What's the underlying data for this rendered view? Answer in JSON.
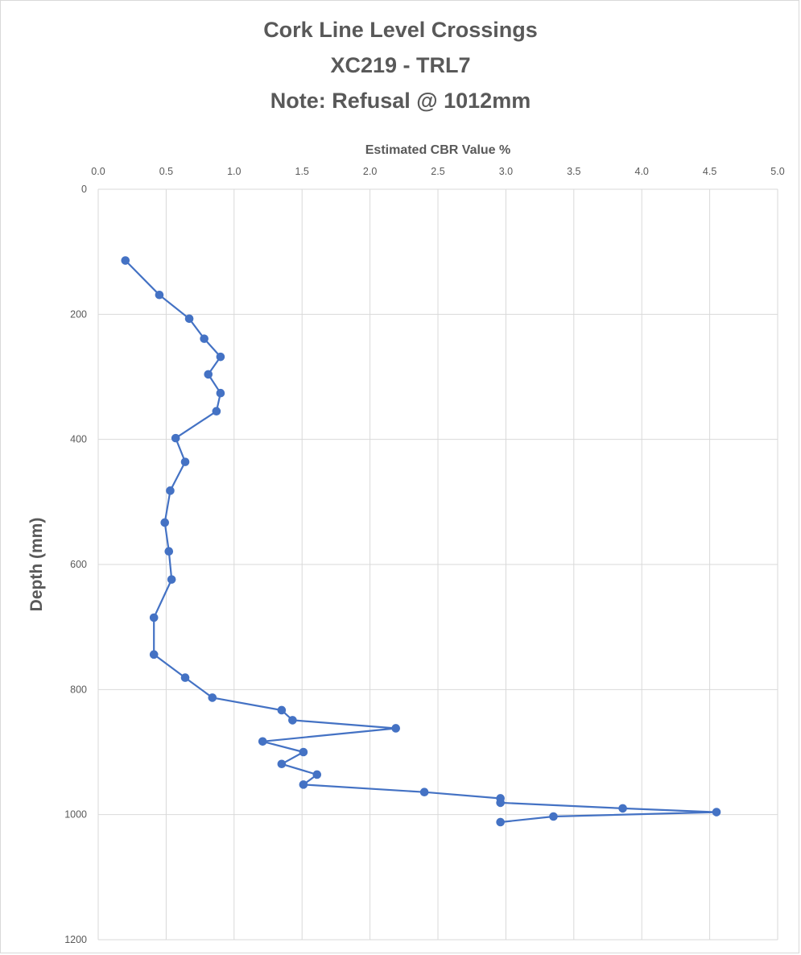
{
  "chart_data": {
    "type": "scatter",
    "title_lines": [
      "Cork Line Level Crossings",
      "XC219 - TRL7",
      "Note: Refusal @ 1012mm"
    ],
    "xlabel": "Estimated CBR Value %",
    "ylabel": "Depth (mm)",
    "xlim": [
      0,
      5
    ],
    "ylim": [
      0,
      1200
    ],
    "y_reversed": true,
    "x_axis_position": "top",
    "x_ticks": [
      "0.0",
      "0.5",
      "1.0",
      "1.5",
      "2.0",
      "2.5",
      "3.0",
      "3.5",
      "4.0",
      "4.5",
      "5.0"
    ],
    "y_ticks": [
      "0",
      "200",
      "400",
      "600",
      "800",
      "1000",
      "1200"
    ],
    "grid": true,
    "legend": "none",
    "series": [
      {
        "color": "#4472c4",
        "markers": true,
        "points": [
          [
            0.2,
            114
          ],
          [
            0.45,
            169
          ],
          [
            0.67,
            207
          ],
          [
            0.78,
            239
          ],
          [
            0.9,
            268
          ],
          [
            0.81,
            296
          ],
          [
            0.9,
            326
          ],
          [
            0.87,
            355
          ],
          [
            0.57,
            398
          ],
          [
            0.64,
            436
          ],
          [
            0.53,
            482
          ],
          [
            0.49,
            533
          ],
          [
            0.52,
            579
          ],
          [
            0.54,
            624
          ],
          [
            0.41,
            685
          ],
          [
            0.41,
            744
          ],
          [
            0.64,
            781
          ],
          [
            0.84,
            813
          ],
          [
            1.35,
            833
          ],
          [
            1.43,
            849
          ],
          [
            2.19,
            862
          ],
          [
            1.21,
            883
          ],
          [
            1.51,
            900
          ],
          [
            1.35,
            919
          ],
          [
            1.61,
            936
          ],
          [
            1.51,
            952
          ],
          [
            2.4,
            964
          ],
          [
            2.96,
            974
          ],
          [
            2.96,
            981
          ],
          [
            3.86,
            990
          ],
          [
            4.55,
            996
          ],
          [
            3.35,
            1003
          ],
          [
            2.96,
            1012
          ]
        ]
      }
    ]
  }
}
